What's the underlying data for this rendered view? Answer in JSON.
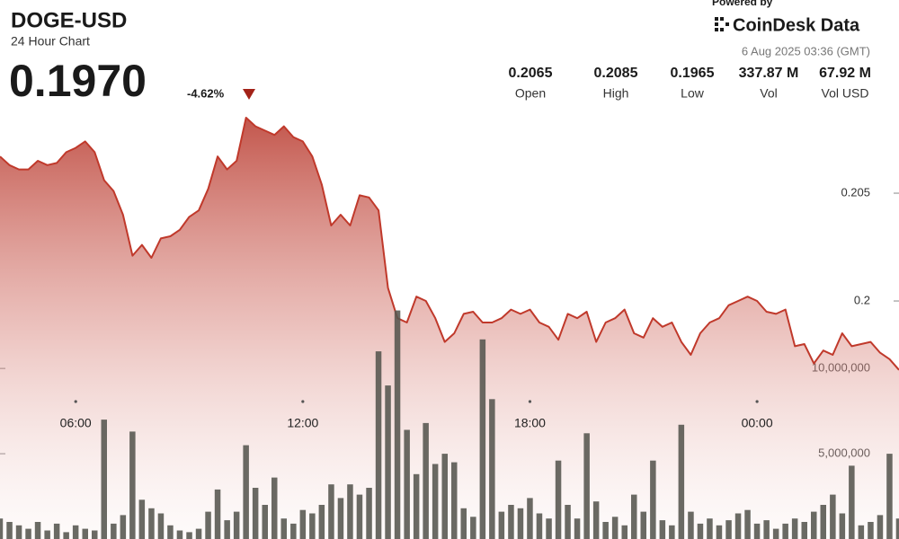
{
  "header": {
    "title": "DOGE-USD",
    "subtitle": "24 Hour Chart",
    "price": "0.1970",
    "change": "-4.62%",
    "stats": [
      {
        "value": "0.2065",
        "label": "Open"
      },
      {
        "value": "0.2085",
        "label": "High"
      },
      {
        "value": "0.1965",
        "label": "Low"
      },
      {
        "value": "337.87 M",
        "label": "Vol"
      },
      {
        "value": "67.92 M",
        "label": "Vol USD"
      }
    ],
    "powered": "Powered by",
    "brand": "CoinDesk Data",
    "timestamp": "6 Aug 2025 03:36 (GMT)"
  },
  "chart_data": {
    "type": "line",
    "x": [
      0,
      0.25,
      0.5,
      0.75,
      1,
      1.25,
      1.5,
      1.75,
      2,
      2.25,
      2.5,
      2.75,
      3,
      3.25,
      3.5,
      3.75,
      4,
      4.25,
      4.5,
      4.75,
      5,
      5.25,
      5.5,
      5.75,
      6,
      6.25,
      6.5,
      6.75,
      7,
      7.25,
      7.5,
      7.75,
      8,
      8.25,
      8.5,
      8.75,
      9,
      9.25,
      9.5,
      9.75,
      10,
      10.25,
      10.5,
      10.75,
      11,
      11.25,
      11.5,
      11.75,
      12,
      12.25,
      12.5,
      12.75,
      13,
      13.25,
      13.5,
      13.75,
      14,
      14.25,
      14.5,
      14.75,
      15,
      15.25,
      15.5,
      15.75,
      16,
      16.25,
      16.5,
      16.75,
      17,
      17.25,
      17.5,
      17.75,
      18,
      18.25,
      18.5,
      18.75,
      19,
      19.25,
      19.5,
      19.75,
      20,
      20.25,
      20.5,
      20.75,
      21,
      21.25,
      21.5,
      21.75,
      22,
      22.25,
      22.5,
      22.75,
      23,
      23.25,
      23.5,
      23.75
    ],
    "xlim": [
      0,
      23.75
    ],
    "xticks": [
      {
        "value": 2,
        "label": "06:00"
      },
      {
        "value": 8,
        "label": "12:00"
      },
      {
        "value": 14,
        "label": "18:00"
      },
      {
        "value": 20,
        "label": "00:00"
      }
    ],
    "ylim": [
      0.18896,
      0.21396
    ],
    "yticks": [
      0.2,
      0.205
    ],
    "y2lim": [
      0,
      31600000
    ],
    "y2ticks": [
      {
        "value": 5000000,
        "label": "5,000,000"
      },
      {
        "value": 10000000,
        "label": "10,000,000"
      }
    ],
    "series": [
      {
        "type": "line",
        "color": "#c0392b",
        "values": [
          0.2067,
          0.2063,
          0.2061,
          0.2061,
          0.2065,
          0.2063,
          0.2064,
          0.2069,
          0.2071,
          0.2074,
          0.2069,
          0.2056,
          0.2051,
          0.204,
          0.2021,
          0.2026,
          0.202,
          0.2029,
          0.203,
          0.2033,
          0.2039,
          0.2042,
          0.2052,
          0.2067,
          0.2061,
          0.2065,
          0.2085,
          0.2081,
          0.2079,
          0.2077,
          0.2081,
          0.2076,
          0.2074,
          0.2067,
          0.2054,
          0.2035,
          0.204,
          0.2035,
          0.2049,
          0.2048,
          0.2042,
          0.2006,
          0.1992,
          0.199,
          0.2002,
          0.2,
          0.1992,
          0.1981,
          0.1985,
          0.1994,
          0.1995,
          0.199,
          0.199,
          0.1992,
          0.1996,
          0.1994,
          0.1996,
          0.199,
          0.1988,
          0.1982,
          0.1994,
          0.1992,
          0.1995,
          0.1981,
          0.199,
          0.1992,
          0.1996,
          0.1985,
          0.1983,
          0.1992,
          0.1988,
          0.199,
          0.1981,
          0.1975,
          0.1985,
          0.199,
          0.1992,
          0.1998,
          0.2,
          0.2002,
          0.2,
          0.1995,
          0.1994,
          0.1996,
          0.1979,
          0.198,
          0.1971,
          0.1977,
          0.1975,
          0.1985,
          0.1979,
          0.198,
          0.1981,
          0.1976,
          0.1973,
          0.1968
        ]
      },
      {
        "type": "bar",
        "axis": "y2",
        "color": "#55554f",
        "values": [
          1200000,
          1000000,
          800000,
          600000,
          1000000,
          500000,
          900000,
          400000,
          800000,
          600000,
          500000,
          7000000,
          900000,
          1400000,
          6300000,
          2300000,
          1800000,
          1500000,
          800000,
          500000,
          400000,
          600000,
          1600000,
          2900000,
          1100000,
          1600000,
          5500000,
          3000000,
          2000000,
          3600000,
          1200000,
          900000,
          1700000,
          1500000,
          2000000,
          3200000,
          2400000,
          3200000,
          2600000,
          3000000,
          11000000,
          9000000,
          13400000,
          6400000,
          3800000,
          6800000,
          4400000,
          5000000,
          4500000,
          1800000,
          1300000,
          11700000,
          8200000,
          1600000,
          2000000,
          1800000,
          2400000,
          1500000,
          1200000,
          4600000,
          2000000,
          1200000,
          6200000,
          2200000,
          1000000,
          1300000,
          800000,
          2600000,
          1600000,
          4600000,
          1100000,
          800000,
          6700000,
          1600000,
          900000,
          1200000,
          800000,
          1100000,
          1500000,
          1700000,
          900000,
          1100000,
          600000,
          900000,
          1200000,
          1000000,
          1600000,
          2000000,
          2600000,
          1500000,
          4300000,
          800000,
          1000000,
          1400000,
          5000000,
          1200000
        ]
      }
    ]
  }
}
